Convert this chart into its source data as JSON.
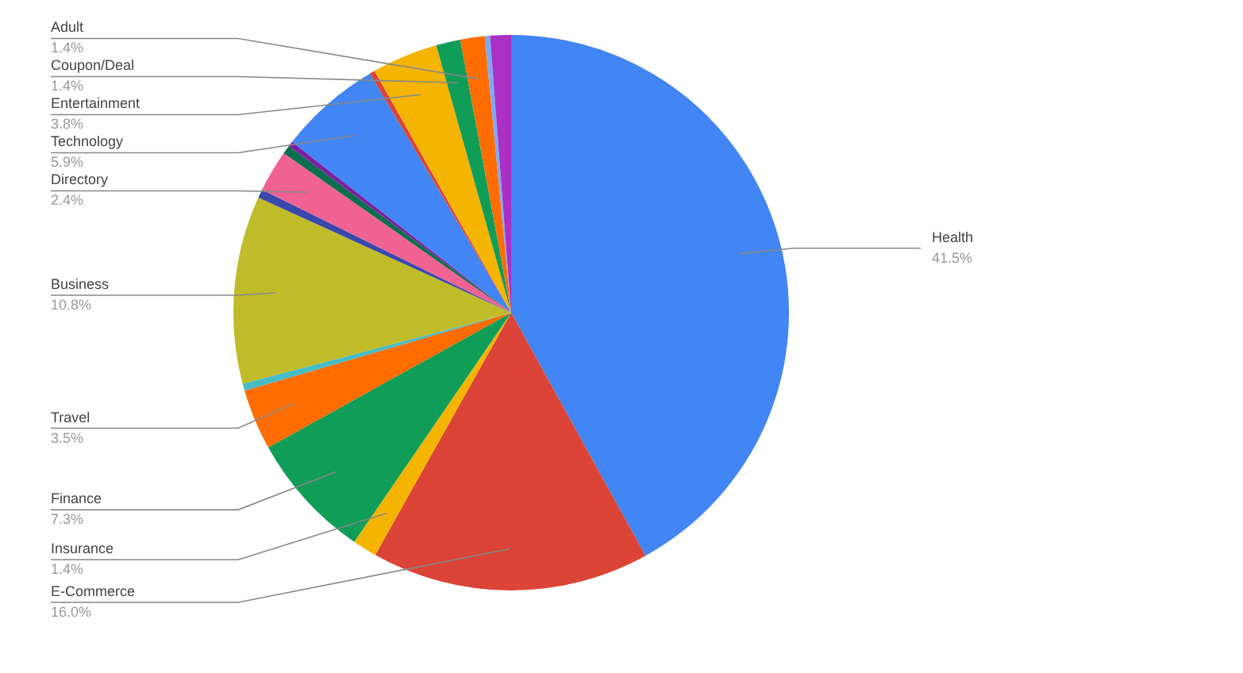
{
  "chart_data": {
    "type": "pie",
    "categories": [
      "Health",
      "E-Commerce",
      "Insurance",
      "Finance",
      "Travel",
      null,
      "Business",
      null,
      "Directory",
      null,
      null,
      "Technology",
      null,
      "Entertainment",
      "Coupon/Deal",
      "Adult",
      null,
      null
    ],
    "values": [
      41.5,
      16.0,
      1.4,
      7.3,
      3.5,
      0.4,
      10.8,
      0.5,
      2.4,
      0.5,
      0.3,
      5.9,
      0.3,
      3.8,
      1.4,
      1.4,
      0.3,
      1.2
    ],
    "colors": [
      "#4285f4",
      "#db4437",
      "#f4b400",
      "#0f9d58",
      "#ff6d00",
      "#46bdc6",
      "#c0bb28",
      "#3949ab",
      "#f06292",
      "#0b6e4f",
      "#7b1fa2",
      "#4285f4",
      "#db4437",
      "#f4b400",
      "#0f9d58",
      "#ff6d00",
      "#7baaf7",
      "#ab30c4"
    ],
    "value_labels": [
      "41.5%",
      "16.0%",
      "1.4%",
      "7.3%",
      "3.5%",
      null,
      "10.8%",
      null,
      "2.4%",
      null,
      null,
      "5.9%",
      null,
      "3.8%",
      "1.4%",
      "1.4%",
      null,
      null
    ]
  }
}
